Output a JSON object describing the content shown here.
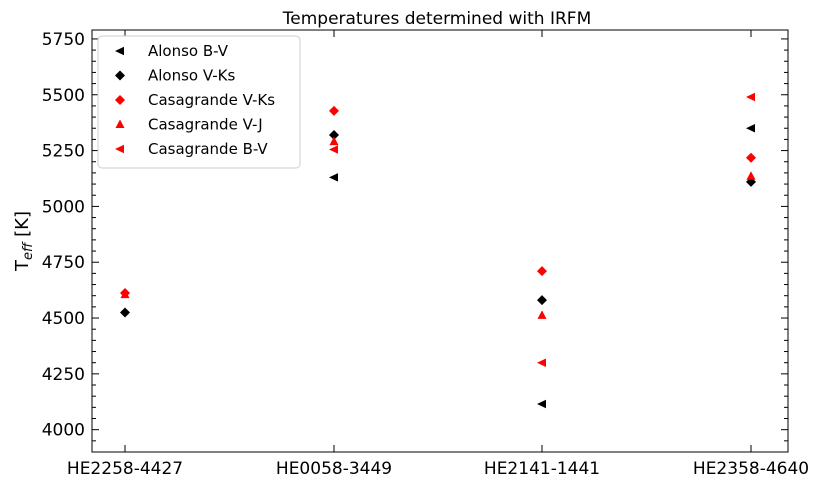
{
  "chart_data": {
    "type": "scatter",
    "title": "Temperatures determined with IRFM",
    "xlabel": "",
    "ylabel_main": "T",
    "ylabel_sub": "eff",
    "ylabel_unit": " [K]",
    "categories": [
      "HE2258-4427",
      "HE0058-3449",
      "HE2141-1441",
      "HE2358-4640"
    ],
    "ylim": [
      3900,
      5790
    ],
    "yticks": [
      4000,
      4250,
      4500,
      4750,
      5000,
      5250,
      5500,
      5750
    ],
    "grid": false,
    "legend_position": "upper-left",
    "series": [
      {
        "name": "Alonso B-V",
        "marker": "triangle-left",
        "color": "#000000",
        "values": [
          null,
          5130,
          4115,
          5350
        ]
      },
      {
        "name": "Alonso V-Ks",
        "marker": "diamond",
        "color": "#000000",
        "values": [
          4525,
          5320,
          4580,
          5110
        ]
      },
      {
        "name": "Casagrande V-Ks",
        "marker": "diamond",
        "color": "#ff0000",
        "values": [
          4612,
          5428,
          4710,
          5218
        ]
      },
      {
        "name": "Casagrande V-J",
        "marker": "triangle-up",
        "color": "#ff0000",
        "values": [
          4605,
          5290,
          4512,
          5135
        ]
      },
      {
        "name": "Casagrande B-V",
        "marker": "triangle-left",
        "color": "#ff0000",
        "values": [
          null,
          5255,
          4300,
          5490
        ]
      }
    ]
  }
}
